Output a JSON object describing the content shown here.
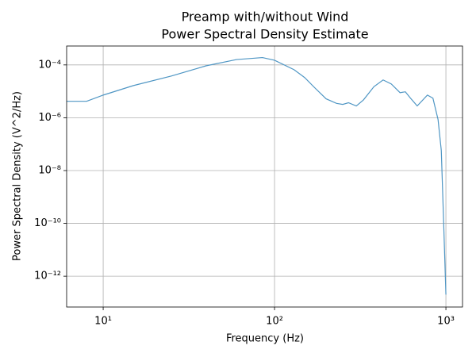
{
  "chart_data": {
    "type": "line",
    "title": [
      "Preamp with/without Wind",
      "Power Spectral Density Estimate"
    ],
    "x_label": "Frequency (Hz)",
    "y_label": "Power Spectral Density (V^2/Hz)",
    "x_scale": "log",
    "y_scale": "log",
    "grid": true,
    "xlim": [
      6.12,
      1250
    ],
    "ylim": [
      6.8e-14,
      0.00052
    ],
    "xticks": [
      {
        "value": 10,
        "label": "10¹"
      },
      {
        "value": 100,
        "label": "10²"
      },
      {
        "value": 1000,
        "label": "10³"
      }
    ],
    "yticks": [
      {
        "value": 1e-12,
        "label": "10⁻¹²"
      },
      {
        "value": 1e-10,
        "label": "10⁻¹⁰"
      },
      {
        "value": 1e-08,
        "label": "10⁻⁸"
      },
      {
        "value": 1e-06,
        "label": "10⁻⁶"
      },
      {
        "value": 0.0001,
        "label": "10⁻⁴"
      }
    ],
    "x": [
      6.12,
      8,
      10,
      15,
      25,
      40,
      60,
      85,
      100,
      130,
      150,
      170,
      200,
      230,
      250,
      270,
      300,
      330,
      380,
      430,
      480,
      540,
      580,
      620,
      680,
      780,
      840,
      900,
      940,
      970,
      1000
    ],
    "series": [
      {
        "color": "#4f96c4",
        "values": [
          4.2e-06,
          4.2e-06,
          7.2e-06,
          1.65e-05,
          3.8e-05,
          9.3e-05,
          0.00016,
          0.00019,
          0.00015,
          6.6e-05,
          3.3e-05,
          1.45e-05,
          5.2e-06,
          3.5e-06,
          3.2e-06,
          3.7e-06,
          2.8e-06,
          4.7e-06,
          1.5e-05,
          2.7e-05,
          1.9e-05,
          8.9e-06,
          9.6e-06,
          5.6e-06,
          2.8e-06,
          7.2e-06,
          5.5e-06,
          8.5e-07,
          5.7e-08,
          1.1e-10,
          2e-13
        ]
      }
    ]
  }
}
